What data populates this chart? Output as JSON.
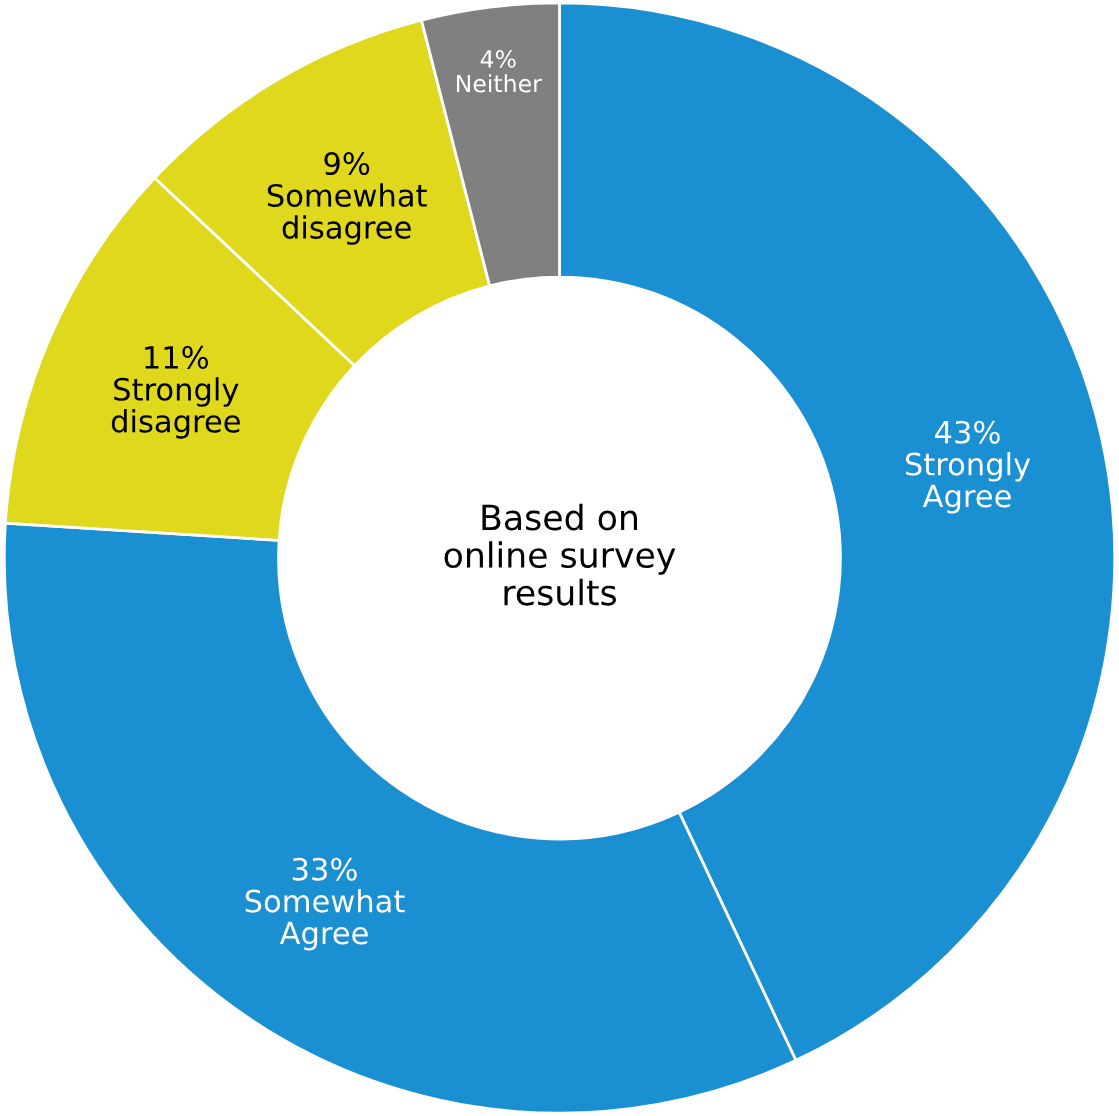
{
  "chart_data": {
    "type": "donut",
    "categories": [
      "Strongly Agree",
      "Somewhat Agree",
      "Strongly disagree",
      "Somewhat disagree",
      "Neither"
    ],
    "values": [
      43,
      33,
      11,
      9,
      4
    ],
    "colors": [
      "#1a8fd2",
      "#1a8fd2",
      "#e0d81d",
      "#e0d81d",
      "#808080"
    ],
    "value_labels": [
      "43%",
      "33%",
      "11%",
      "9%",
      "4%"
    ],
    "annotations": [
      "Based on online survey results"
    ],
    "legend": false
  }
}
